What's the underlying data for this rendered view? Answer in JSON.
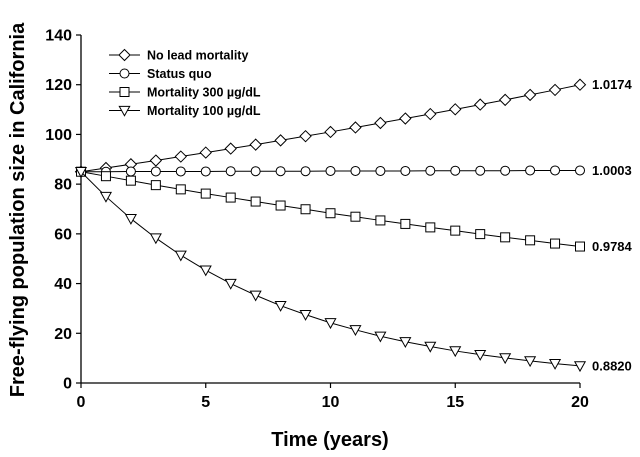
{
  "chart_data": {
    "type": "line",
    "title": "",
    "xlabel": "Time (years)",
    "ylabel": "Free-flying population size in California",
    "xlim": [
      0,
      20
    ],
    "ylim": [
      0,
      140
    ],
    "xticks": [
      0,
      5,
      10,
      15,
      20
    ],
    "yticks": [
      0,
      20,
      40,
      60,
      80,
      100,
      120,
      140
    ],
    "grid": false,
    "legend_position": "top-left",
    "x": [
      0,
      1,
      2,
      3,
      4,
      5,
      6,
      7,
      8,
      9,
      10,
      11,
      12,
      13,
      14,
      15,
      16,
      17,
      18,
      19,
      20
    ],
    "series": [
      {
        "name": "No lead mortality",
        "marker": "diamond",
        "end_label": "1.0174",
        "values": [
          85.0,
          86.5,
          88.0,
          89.5,
          91.1,
          92.7,
          94.3,
          95.9,
          97.6,
          99.3,
          101.0,
          102.8,
          104.6,
          106.4,
          108.2,
          110.1,
          112.0,
          113.9,
          115.9,
          117.9,
          120.0
        ]
      },
      {
        "name": "Status quo",
        "marker": "circle",
        "end_label": "1.0003",
        "values": [
          85.0,
          85.0,
          85.1,
          85.1,
          85.1,
          85.1,
          85.2,
          85.2,
          85.2,
          85.2,
          85.3,
          85.3,
          85.3,
          85.3,
          85.4,
          85.4,
          85.4,
          85.4,
          85.5,
          85.5,
          85.5
        ]
      },
      {
        "name": "Mortality 300 µg/dL",
        "marker": "square",
        "end_label": "0.9784",
        "values": [
          85.0,
          83.2,
          81.4,
          79.6,
          77.9,
          76.2,
          74.6,
          73.0,
          71.4,
          69.9,
          68.3,
          66.9,
          65.4,
          64.0,
          62.6,
          61.3,
          59.9,
          58.6,
          57.4,
          56.1,
          54.9
        ]
      },
      {
        "name": "Mortality 100 µg/dL",
        "marker": "triangle-down",
        "end_label": "0.8820",
        "values": [
          85.0,
          75.0,
          66.1,
          58.3,
          51.4,
          45.4,
          40.0,
          35.3,
          31.1,
          27.5,
          24.2,
          21.4,
          18.8,
          16.6,
          14.7,
          12.9,
          11.4,
          10.1,
          8.9,
          7.8,
          6.9
        ]
      }
    ]
  }
}
